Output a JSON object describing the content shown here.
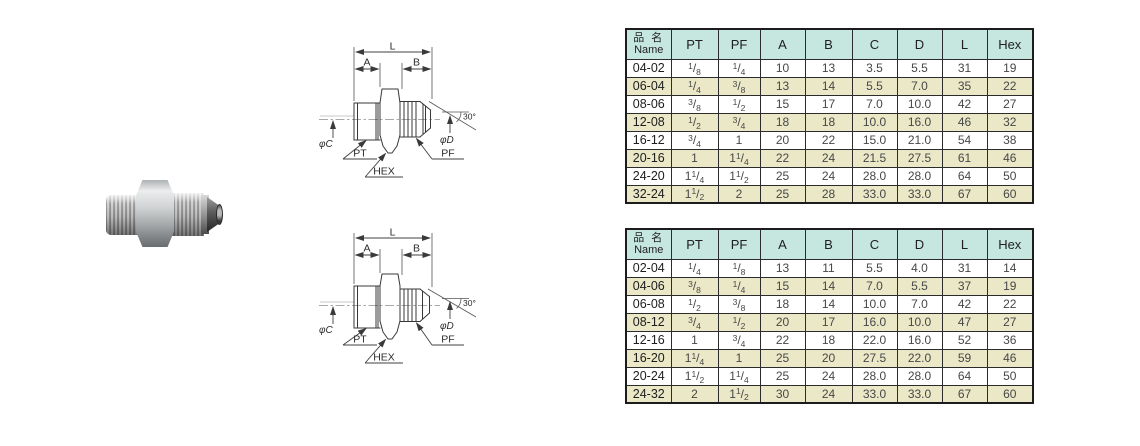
{
  "colors": {
    "header_bg": "#c6e6e0",
    "alt_row_bg": "#eae8c7",
    "table_border": "#1c1c1c",
    "line_color": "#3c3c3c"
  },
  "drawing": {
    "labels": {
      "l": "L",
      "a": "A",
      "b": "B",
      "phi_c": "φC",
      "phi_d": "φD",
      "angle": "30°",
      "pt": "PT",
      "pf": "PF",
      "hex": "HEX"
    }
  },
  "tables": [
    {
      "headers": {
        "name_cn": "品 名",
        "name_en": "Name",
        "cols": [
          "PT",
          "PF",
          "A",
          "B",
          "C",
          "D",
          "L",
          "Hex"
        ]
      },
      "rows": [
        [
          "04-02",
          "1/8",
          "1/4",
          "10",
          "13",
          "3.5",
          "5.5",
          "31",
          "19"
        ],
        [
          "06-04",
          "1/4",
          "3/8",
          "13",
          "14",
          "5.5",
          "7.0",
          "35",
          "22"
        ],
        [
          "08-06",
          "3/8",
          "1/2",
          "15",
          "17",
          "7.0",
          "10.0",
          "42",
          "27"
        ],
        [
          "12-08",
          "1/2",
          "3/4",
          "18",
          "18",
          "10.0",
          "16.0",
          "46",
          "32"
        ],
        [
          "16-12",
          "3/4",
          "1",
          "20",
          "22",
          "15.0",
          "21.0",
          "54",
          "38"
        ],
        [
          "20-16",
          "1",
          "1 1/4",
          "22",
          "24",
          "21.5",
          "27.5",
          "61",
          "46"
        ],
        [
          "24-20",
          "1 1/4",
          "1 1/2",
          "25",
          "24",
          "28.0",
          "28.0",
          "64",
          "50"
        ],
        [
          "32-24",
          "1 1/2",
          "2",
          "25",
          "28",
          "33.0",
          "33.0",
          "67",
          "60"
        ]
      ]
    },
    {
      "headers": {
        "name_cn": "品 名",
        "name_en": "Name",
        "cols": [
          "PT",
          "PF",
          "A",
          "B",
          "C",
          "D",
          "L",
          "Hex"
        ]
      },
      "rows": [
        [
          "02-04",
          "1/4",
          "1/8",
          "13",
          "11",
          "5.5",
          "4.0",
          "31",
          "14"
        ],
        [
          "04-06",
          "3/8",
          "1/4",
          "15",
          "14",
          "7.0",
          "5.5",
          "37",
          "19"
        ],
        [
          "06-08",
          "1/2",
          "3/8",
          "18",
          "14",
          "10.0",
          "7.0",
          "42",
          "22"
        ],
        [
          "08-12",
          "3/4",
          "1/2",
          "20",
          "17",
          "16.0",
          "10.0",
          "47",
          "27"
        ],
        [
          "12-16",
          "1",
          "3/4",
          "22",
          "18",
          "22.0",
          "16.0",
          "52",
          "36"
        ],
        [
          "16-20",
          "1 1/4",
          "1",
          "25",
          "20",
          "27.5",
          "22.0",
          "59",
          "46"
        ],
        [
          "20-24",
          "1 1/2",
          "1 1/4",
          "25",
          "24",
          "28.0",
          "28.0",
          "64",
          "50"
        ],
        [
          "24-32",
          "2",
          "1 1/2",
          "30",
          "24",
          "33.0",
          "33.0",
          "67",
          "60"
        ]
      ]
    }
  ],
  "photo": {
    "description": "steel hex nipple adapter fitting"
  }
}
